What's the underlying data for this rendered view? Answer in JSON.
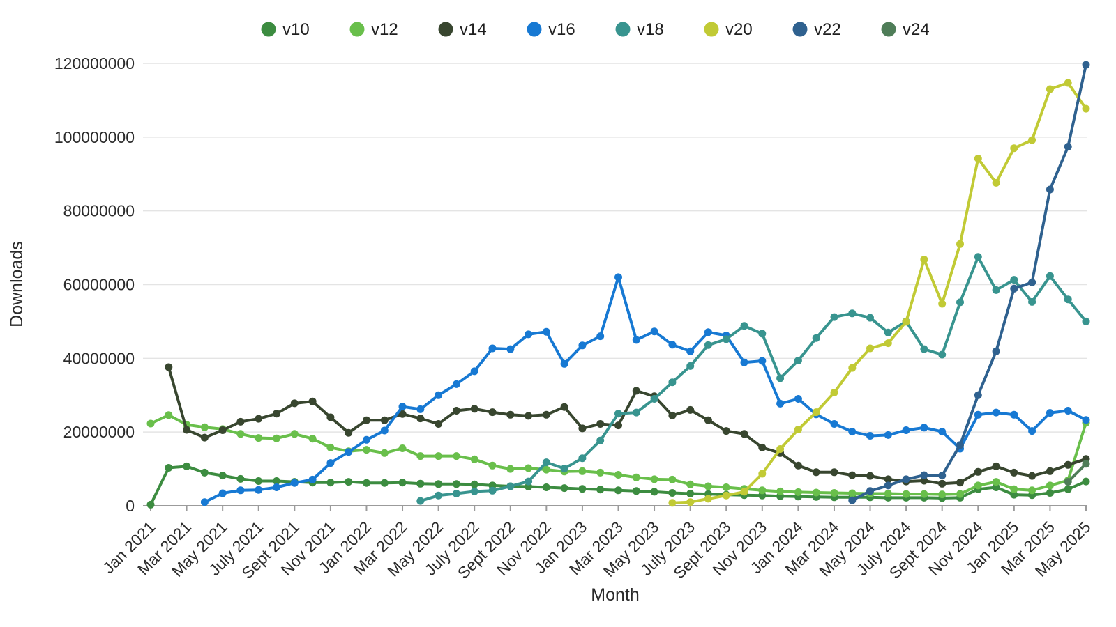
{
  "chart_data": {
    "type": "line",
    "title": "",
    "xlabel": "Month",
    "ylabel": "Downloads",
    "ylim": [
      0,
      120000000
    ],
    "y_ticks": [
      0,
      20000000,
      40000000,
      60000000,
      80000000,
      100000000,
      120000000
    ],
    "x_tick_labels": [
      "Jan 2021",
      "Mar 2021",
      "May 2021",
      "July 2021",
      "Sept 2021",
      "Nov 2021",
      "Jan 2022",
      "Mar 2022",
      "May 2022",
      "July 2022",
      "Sept 2022",
      "Nov 2022",
      "Jan 2023",
      "Mar 2023",
      "May 2023",
      "July 2023",
      "Sept 2023",
      "Nov 2023",
      "Jan 2024",
      "Mar 2024",
      "May 2024",
      "July 2024",
      "Sept 2024",
      "Nov 2024",
      "Jan 2025",
      "Mar 2025",
      "May 2025"
    ],
    "months_total": 53,
    "tick_every": 2,
    "grid": "horizontal",
    "legend_position": "top",
    "legend_marker": "circle",
    "style": {
      "background": "#ffffff",
      "grid_color": "#e4e4e4",
      "axis_color": "#9b9b9b",
      "text_color": "#2b2b2b"
    },
    "series": [
      {
        "name": "v10",
        "color": "#3c8c40",
        "values": [
          300000,
          10300000,
          10700000,
          9000000,
          8200000,
          7300000,
          6700000,
          6700000,
          6500000,
          6300000,
          6300000,
          6500000,
          6200000,
          6200000,
          6300000,
          6000000,
          5900000,
          5900000,
          5800000,
          5500000,
          5300000,
          5200000,
          5000000,
          4800000,
          4600000,
          4400000,
          4200000,
          4000000,
          3800000,
          3500000,
          3300000,
          3200000,
          3000000,
          2900000,
          2800000,
          2600000,
          2500000,
          2400000,
          2300000,
          2300000,
          2300000,
          2200000,
          2200000,
          2200000,
          2100000,
          2200000,
          4500000,
          5000000,
          3000000,
          2900000,
          3500000,
          4500000,
          6600000
        ]
      },
      {
        "name": "v12",
        "color": "#69bf4b",
        "values": [
          22300000,
          24600000,
          22000000,
          21300000,
          20800000,
          19500000,
          18400000,
          18300000,
          19500000,
          18200000,
          15800000,
          14800000,
          15200000,
          14300000,
          15600000,
          13500000,
          13500000,
          13500000,
          12600000,
          10900000,
          10000000,
          10200000,
          9800000,
          9300000,
          9400000,
          9000000,
          8400000,
          7700000,
          7200000,
          7100000,
          5800000,
          5300000,
          5000000,
          4600000,
          4200000,
          3900000,
          3700000,
          3600000,
          3500000,
          3400000,
          3300000,
          3300000,
          3200000,
          3200000,
          3100000,
          3200000,
          5500000,
          6500000,
          4500000,
          4200000,
          5500000,
          6900000,
          22500000
        ]
      },
      {
        "name": "v14",
        "color": "#38462f",
        "values": [
          null,
          37600000,
          20600000,
          18500000,
          20500000,
          22800000,
          23600000,
          25000000,
          27800000,
          28300000,
          24000000,
          19800000,
          23200000,
          23200000,
          24900000,
          23700000,
          22200000,
          25800000,
          26300000,
          25400000,
          24700000,
          24400000,
          24700000,
          26800000,
          21000000,
          22200000,
          21800000,
          31200000,
          29700000,
          24500000,
          26000000,
          23200000,
          20300000,
          19500000,
          15800000,
          14300000,
          10900000,
          9100000,
          9100000,
          8300000,
          8100000,
          7200000,
          6600000,
          6800000,
          6000000,
          6300000,
          9200000,
          10700000,
          9000000,
          8100000,
          9400000,
          11100000,
          12700000
        ]
      },
      {
        "name": "v16",
        "color": "#1779d3",
        "values": [
          null,
          null,
          null,
          1000000,
          3400000,
          4200000,
          4300000,
          5000000,
          6200000,
          7100000,
          11600000,
          14600000,
          17900000,
          20400000,
          26900000,
          26200000,
          30000000,
          33000000,
          36500000,
          42700000,
          42500000,
          46500000,
          47200000,
          38500000,
          43500000,
          46000000,
          62000000,
          45000000,
          47300000,
          43700000,
          41900000,
          47100000,
          46200000,
          38900000,
          39300000,
          27700000,
          29000000,
          24800000,
          22200000,
          20100000,
          19000000,
          19200000,
          20500000,
          21200000,
          20100000,
          15500000,
          24700000,
          25300000,
          24700000,
          20300000,
          25200000,
          25800000,
          23300000
        ]
      },
      {
        "name": "v18",
        "color": "#38948f",
        "values": [
          null,
          null,
          null,
          null,
          null,
          null,
          null,
          null,
          null,
          null,
          null,
          null,
          null,
          null,
          null,
          1300000,
          2800000,
          3300000,
          3900000,
          4100000,
          5300000,
          6600000,
          11800000,
          10100000,
          12900000,
          17700000,
          25000000,
          25300000,
          29000000,
          33500000,
          37900000,
          43600000,
          45200000,
          48800000,
          46700000,
          34600000,
          39400000,
          45500000,
          51200000,
          52200000,
          51000000,
          47000000,
          50000000,
          42500000,
          41000000,
          55200000,
          67500000,
          58500000,
          61300000,
          55300000,
          62300000,
          56000000,
          50000000
        ]
      },
      {
        "name": "v20",
        "color": "#c1ca35",
        "values": [
          null,
          null,
          null,
          null,
          null,
          null,
          null,
          null,
          null,
          null,
          null,
          null,
          null,
          null,
          null,
          null,
          null,
          null,
          null,
          null,
          null,
          null,
          null,
          null,
          null,
          null,
          null,
          null,
          null,
          800000,
          1000000,
          1900000,
          2800000,
          3800000,
          8700000,
          15400000,
          20700000,
          25400000,
          30700000,
          37400000,
          42700000,
          44100000,
          49900000,
          66800000,
          54800000,
          71000000,
          94200000,
          87600000,
          97000000,
          99200000,
          113000000,
          114700000,
          107700000
        ]
      },
      {
        "name": "v22",
        "color": "#2f618f",
        "values": [
          null,
          null,
          null,
          null,
          null,
          null,
          null,
          null,
          null,
          null,
          null,
          null,
          null,
          null,
          null,
          null,
          null,
          null,
          null,
          null,
          null,
          null,
          null,
          null,
          null,
          null,
          null,
          null,
          null,
          null,
          null,
          null,
          null,
          null,
          null,
          null,
          null,
          null,
          null,
          1500000,
          4000000,
          5500000,
          7200000,
          8300000,
          8200000,
          16500000,
          30000000,
          41900000,
          58900000,
          60600000,
          85800000,
          97400000,
          119600000
        ]
      },
      {
        "name": "v24",
        "color": "#4f7d58",
        "values": [
          null,
          null,
          null,
          null,
          null,
          null,
          null,
          null,
          null,
          null,
          null,
          null,
          null,
          null,
          null,
          null,
          null,
          null,
          null,
          null,
          null,
          null,
          null,
          null,
          null,
          null,
          null,
          null,
          null,
          null,
          null,
          null,
          null,
          null,
          null,
          null,
          null,
          null,
          null,
          null,
          null,
          null,
          null,
          null,
          null,
          null,
          null,
          null,
          null,
          null,
          null,
          6500000,
          11400000
        ]
      }
    ]
  }
}
